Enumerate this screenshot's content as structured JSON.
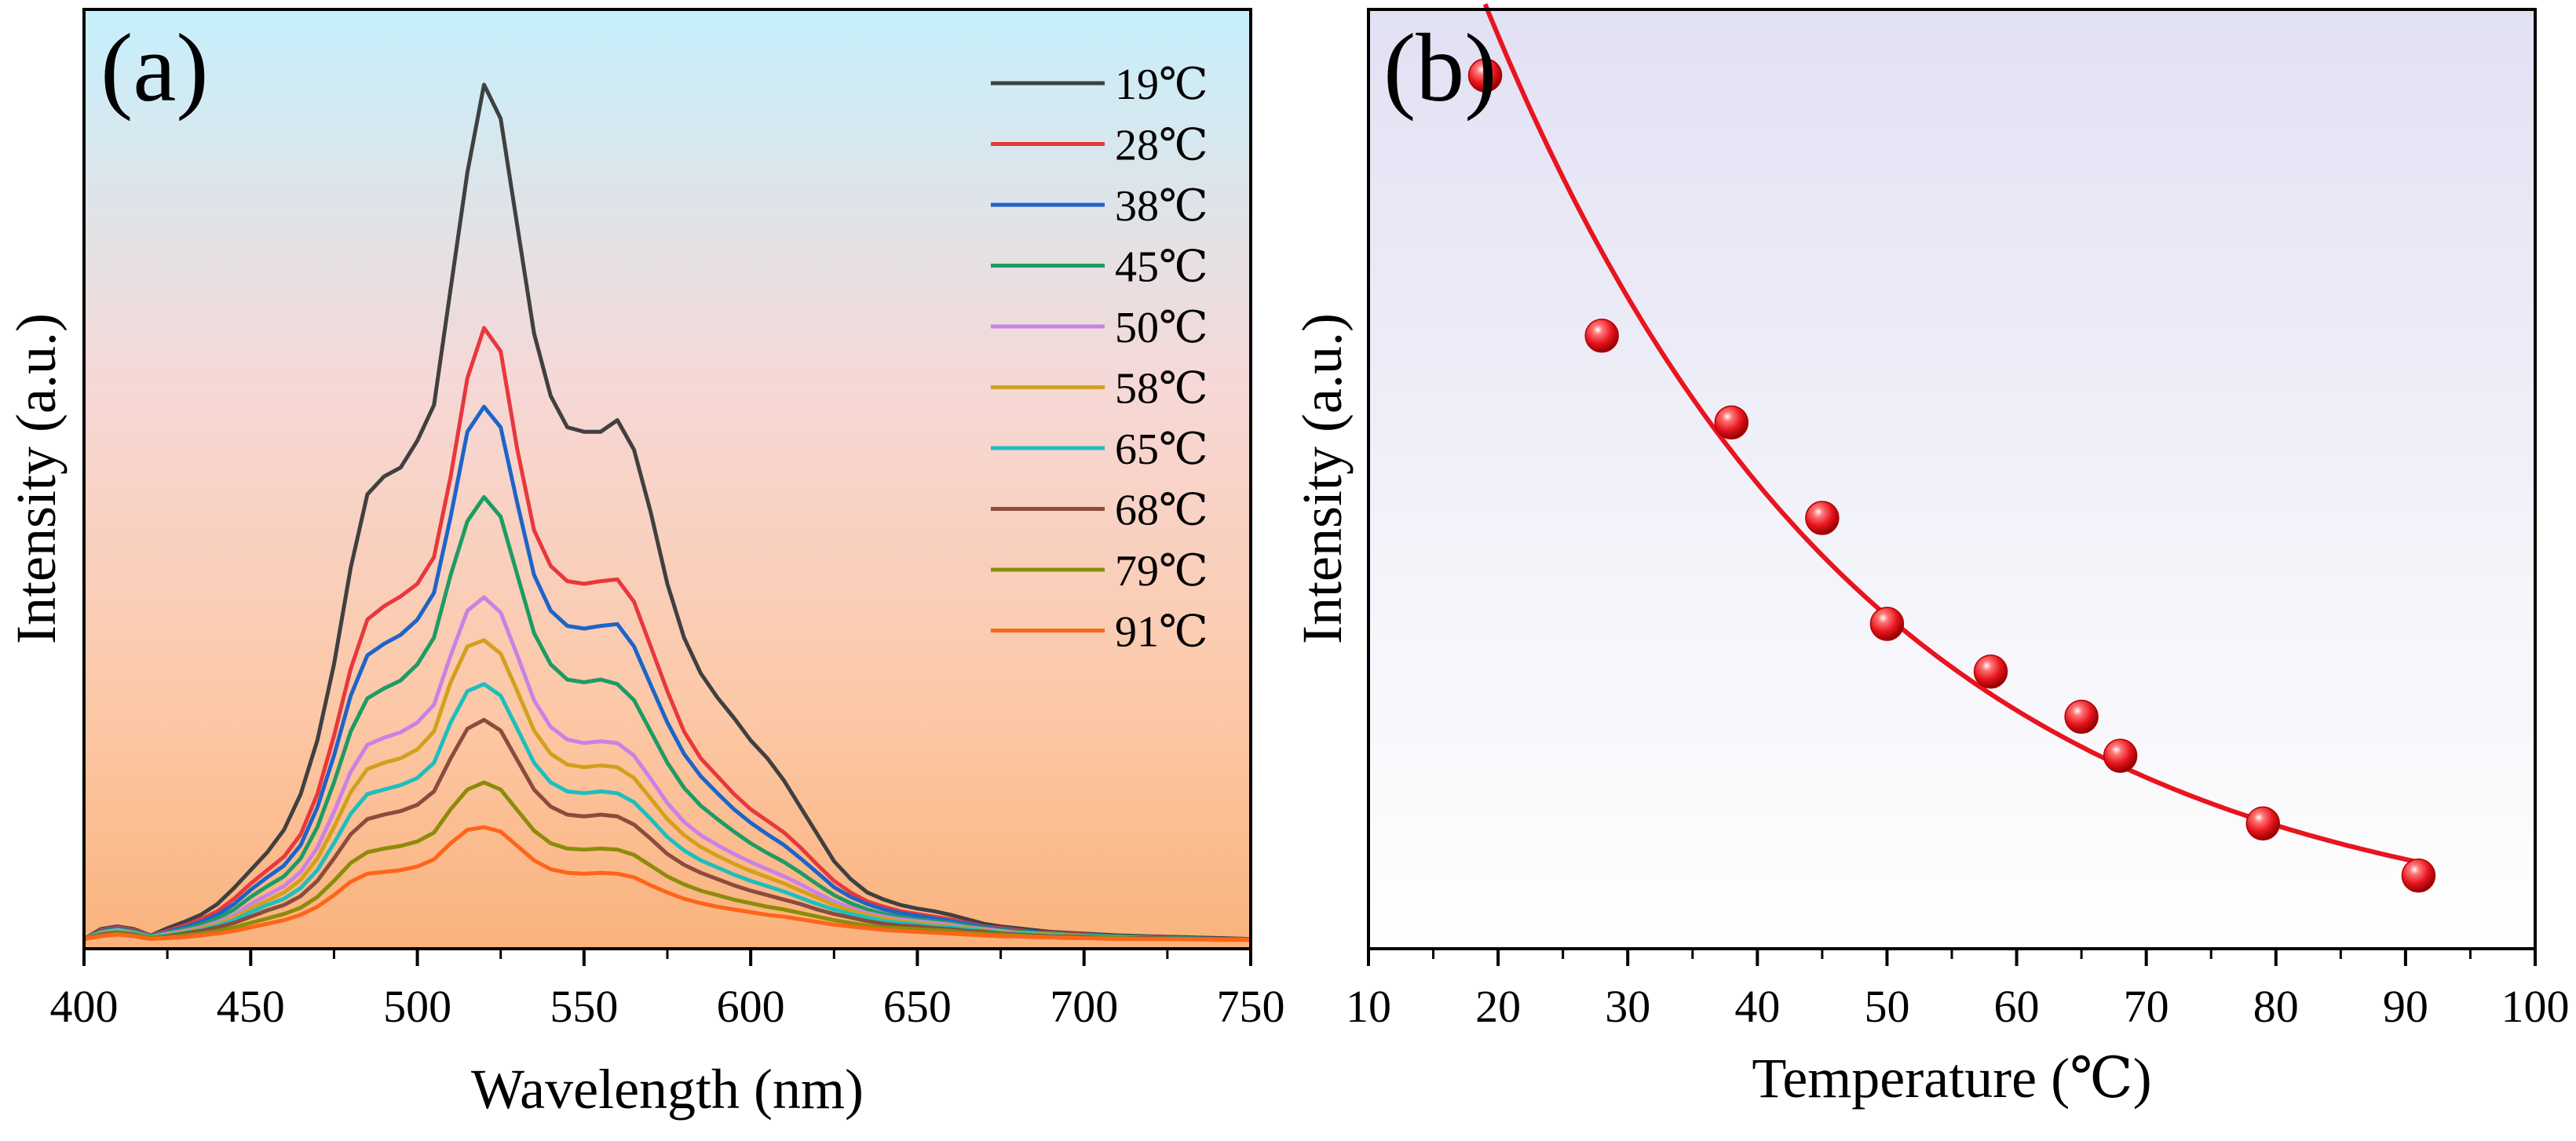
{
  "chart_data": [
    {
      "panel_label": "(a)",
      "type": "line",
      "xlabel": "Wavelength (nm)",
      "ylabel": "Intensity (a.u.)",
      "xlim": [
        400,
        750
      ],
      "ylim": [
        0,
        1.0
      ],
      "x_ticks": [
        "400",
        "450",
        "500",
        "550",
        "600",
        "650",
        "700",
        "750"
      ],
      "legend_position": "top-right",
      "background": "vertical gradient, light cyan at top to light orange at bottom",
      "x": [
        400,
        405,
        410,
        415,
        420,
        425,
        430,
        435,
        440,
        445,
        450,
        455,
        460,
        465,
        470,
        475,
        480,
        485,
        490,
        495,
        500,
        505,
        510,
        515,
        520,
        525,
        530,
        535,
        540,
        545,
        550,
        555,
        560,
        565,
        570,
        575,
        580,
        585,
        590,
        595,
        600,
        605,
        610,
        615,
        620,
        625,
        630,
        635,
        640,
        645,
        650,
        655,
        660,
        665,
        670,
        675,
        680,
        685,
        690,
        695,
        700,
        710,
        720,
        730,
        740,
        750
      ],
      "series": [
        {
          "name": "19℃",
          "color": "#404040",
          "values": [
            0.003,
            0.014,
            0.017,
            0.014,
            0.007,
            0.015,
            0.022,
            0.03,
            0.042,
            0.06,
            0.08,
            0.1,
            0.125,
            0.165,
            0.225,
            0.31,
            0.418,
            0.5,
            0.52,
            0.53,
            0.56,
            0.6,
            0.73,
            0.86,
            0.958,
            0.92,
            0.8,
            0.68,
            0.61,
            0.575,
            0.57,
            0.57,
            0.583,
            0.55,
            0.48,
            0.4,
            0.34,
            0.3,
            0.273,
            0.25,
            0.225,
            0.205,
            0.18,
            0.15,
            0.12,
            0.09,
            0.07,
            0.055,
            0.047,
            0.041,
            0.037,
            0.034,
            0.03,
            0.025,
            0.02,
            0.017,
            0.015,
            0.013,
            0.011,
            0.01,
            0.009,
            0.007,
            0.006,
            0.005,
            0.004,
            0.003
          ]
        },
        {
          "name": "28℃",
          "color": "#E8383D",
          "values": [
            0.003,
            0.013,
            0.016,
            0.013,
            0.007,
            0.012,
            0.018,
            0.025,
            0.034,
            0.048,
            0.065,
            0.08,
            0.095,
            0.12,
            0.165,
            0.23,
            0.305,
            0.36,
            0.375,
            0.386,
            0.4,
            0.43,
            0.52,
            0.63,
            0.686,
            0.66,
            0.55,
            0.46,
            0.42,
            0.403,
            0.4,
            0.403,
            0.405,
            0.38,
            0.33,
            0.28,
            0.235,
            0.205,
            0.185,
            0.165,
            0.148,
            0.135,
            0.122,
            0.105,
            0.086,
            0.068,
            0.055,
            0.045,
            0.039,
            0.034,
            0.031,
            0.028,
            0.025,
            0.021,
            0.017,
            0.015,
            0.013,
            0.011,
            0.01,
            0.009,
            0.008,
            0.006,
            0.005,
            0.004,
            0.003,
            0.003
          ]
        },
        {
          "name": "38℃",
          "color": "#1E64C8",
          "values": [
            0.003,
            0.012,
            0.015,
            0.012,
            0.006,
            0.011,
            0.016,
            0.022,
            0.03,
            0.042,
            0.058,
            0.072,
            0.085,
            0.108,
            0.15,
            0.208,
            0.275,
            0.32,
            0.333,
            0.343,
            0.36,
            0.39,
            0.475,
            0.57,
            0.598,
            0.575,
            0.49,
            0.41,
            0.37,
            0.353,
            0.35,
            0.353,
            0.355,
            0.33,
            0.287,
            0.245,
            0.21,
            0.185,
            0.166,
            0.148,
            0.133,
            0.12,
            0.108,
            0.093,
            0.077,
            0.061,
            0.05,
            0.042,
            0.036,
            0.032,
            0.029,
            0.026,
            0.023,
            0.02,
            0.016,
            0.014,
            0.012,
            0.011,
            0.009,
            0.008,
            0.007,
            0.006,
            0.005,
            0.004,
            0.003,
            0.003
          ]
        },
        {
          "name": "45℃",
          "color": "#1E9B64",
          "values": [
            0.003,
            0.011,
            0.014,
            0.011,
            0.006,
            0.01,
            0.014,
            0.019,
            0.026,
            0.036,
            0.05,
            0.062,
            0.073,
            0.093,
            0.128,
            0.178,
            0.235,
            0.272,
            0.283,
            0.292,
            0.31,
            0.34,
            0.41,
            0.47,
            0.497,
            0.475,
            0.41,
            0.345,
            0.31,
            0.293,
            0.29,
            0.293,
            0.288,
            0.27,
            0.235,
            0.2,
            0.172,
            0.152,
            0.137,
            0.123,
            0.11,
            0.099,
            0.089,
            0.077,
            0.064,
            0.052,
            0.043,
            0.036,
            0.031,
            0.028,
            0.025,
            0.023,
            0.021,
            0.018,
            0.015,
            0.013,
            0.011,
            0.01,
            0.009,
            0.008,
            0.007,
            0.006,
            0.005,
            0.004,
            0.003,
            0.003
          ]
        },
        {
          "name": "50℃",
          "color": "#C882E6",
          "values": [
            0.003,
            0.01,
            0.013,
            0.01,
            0.005,
            0.009,
            0.012,
            0.016,
            0.022,
            0.03,
            0.042,
            0.052,
            0.062,
            0.078,
            0.105,
            0.145,
            0.19,
            0.22,
            0.228,
            0.234,
            0.245,
            0.265,
            0.32,
            0.37,
            0.385,
            0.368,
            0.32,
            0.27,
            0.24,
            0.226,
            0.222,
            0.224,
            0.222,
            0.208,
            0.182,
            0.155,
            0.134,
            0.119,
            0.108,
            0.098,
            0.089,
            0.081,
            0.073,
            0.064,
            0.054,
            0.045,
            0.038,
            0.032,
            0.028,
            0.025,
            0.023,
            0.021,
            0.019,
            0.016,
            0.014,
            0.012,
            0.01,
            0.009,
            0.008,
            0.007,
            0.006,
            0.005,
            0.004,
            0.003,
            0.003,
            0.003
          ]
        },
        {
          "name": "58℃",
          "color": "#D2A01E",
          "values": [
            0.003,
            0.01,
            0.012,
            0.01,
            0.005,
            0.008,
            0.011,
            0.015,
            0.02,
            0.027,
            0.037,
            0.046,
            0.055,
            0.069,
            0.093,
            0.128,
            0.167,
            0.193,
            0.2,
            0.205,
            0.215,
            0.235,
            0.29,
            0.33,
            0.337,
            0.322,
            0.28,
            0.236,
            0.21,
            0.198,
            0.195,
            0.197,
            0.195,
            0.183,
            0.16,
            0.137,
            0.119,
            0.106,
            0.096,
            0.087,
            0.079,
            0.072,
            0.065,
            0.057,
            0.049,
            0.041,
            0.035,
            0.03,
            0.026,
            0.023,
            0.021,
            0.019,
            0.017,
            0.015,
            0.013,
            0.011,
            0.01,
            0.009,
            0.008,
            0.007,
            0.006,
            0.005,
            0.004,
            0.003,
            0.003,
            0.003
          ]
        },
        {
          "name": "65℃",
          "color": "#1EBEBE",
          "values": [
            0.003,
            0.009,
            0.011,
            0.009,
            0.005,
            0.007,
            0.01,
            0.013,
            0.018,
            0.024,
            0.033,
            0.041,
            0.048,
            0.06,
            0.08,
            0.11,
            0.143,
            0.165,
            0.17,
            0.175,
            0.183,
            0.2,
            0.245,
            0.28,
            0.288,
            0.275,
            0.238,
            0.2,
            0.178,
            0.168,
            0.166,
            0.168,
            0.166,
            0.156,
            0.137,
            0.117,
            0.102,
            0.091,
            0.083,
            0.075,
            0.068,
            0.062,
            0.056,
            0.049,
            0.042,
            0.036,
            0.031,
            0.027,
            0.023,
            0.021,
            0.019,
            0.017,
            0.016,
            0.014,
            0.012,
            0.01,
            0.009,
            0.008,
            0.007,
            0.006,
            0.006,
            0.005,
            0.004,
            0.003,
            0.003,
            0.003
          ]
        },
        {
          "name": "68℃",
          "color": "#8C4B3C",
          "values": [
            0.003,
            0.008,
            0.01,
            0.008,
            0.004,
            0.006,
            0.009,
            0.012,
            0.016,
            0.021,
            0.028,
            0.035,
            0.041,
            0.051,
            0.068,
            0.093,
            0.12,
            0.137,
            0.142,
            0.146,
            0.153,
            0.168,
            0.205,
            0.238,
            0.248,
            0.236,
            0.203,
            0.17,
            0.151,
            0.142,
            0.14,
            0.142,
            0.14,
            0.131,
            0.115,
            0.098,
            0.086,
            0.077,
            0.07,
            0.063,
            0.057,
            0.052,
            0.047,
            0.042,
            0.036,
            0.031,
            0.027,
            0.023,
            0.02,
            0.018,
            0.017,
            0.015,
            0.014,
            0.012,
            0.011,
            0.009,
            0.008,
            0.007,
            0.006,
            0.006,
            0.005,
            0.004,
            0.004,
            0.003,
            0.003,
            0.003
          ]
        },
        {
          "name": "79℃",
          "color": "#8C8C0A",
          "values": [
            0.003,
            0.007,
            0.009,
            0.007,
            0.004,
            0.005,
            0.007,
            0.009,
            0.012,
            0.016,
            0.021,
            0.026,
            0.031,
            0.038,
            0.05,
            0.068,
            0.088,
            0.1,
            0.104,
            0.107,
            0.112,
            0.122,
            0.148,
            0.17,
            0.178,
            0.17,
            0.147,
            0.124,
            0.11,
            0.104,
            0.103,
            0.104,
            0.103,
            0.097,
            0.085,
            0.073,
            0.064,
            0.057,
            0.052,
            0.047,
            0.043,
            0.039,
            0.036,
            0.032,
            0.028,
            0.024,
            0.021,
            0.018,
            0.016,
            0.015,
            0.014,
            0.013,
            0.012,
            0.01,
            0.009,
            0.008,
            0.007,
            0.006,
            0.005,
            0.005,
            0.004,
            0.004,
            0.003,
            0.003,
            0.003,
            0.002
          ]
        },
        {
          "name": "91℃",
          "color": "#FF6419",
          "values": [
            0.003,
            0.006,
            0.008,
            0.006,
            0.003,
            0.004,
            0.005,
            0.007,
            0.009,
            0.012,
            0.016,
            0.02,
            0.024,
            0.03,
            0.039,
            0.052,
            0.067,
            0.076,
            0.078,
            0.08,
            0.084,
            0.092,
            0.11,
            0.125,
            0.128,
            0.123,
            0.107,
            0.091,
            0.081,
            0.077,
            0.076,
            0.077,
            0.076,
            0.072,
            0.063,
            0.055,
            0.048,
            0.043,
            0.039,
            0.036,
            0.033,
            0.03,
            0.028,
            0.025,
            0.022,
            0.019,
            0.017,
            0.015,
            0.013,
            0.012,
            0.011,
            0.01,
            0.009,
            0.008,
            0.007,
            0.006,
            0.006,
            0.005,
            0.005,
            0.004,
            0.004,
            0.003,
            0.003,
            0.003,
            0.002,
            0.002
          ]
        }
      ]
    },
    {
      "panel_label": "(b)",
      "type": "scatter",
      "xlabel": "Temperature (℃)",
      "ylabel": "Intensity (a.u.)",
      "xlim": [
        10,
        100
      ],
      "ylim": [
        0,
        1.0
      ],
      "x_ticks": [
        "10",
        "20",
        "30",
        "40",
        "50",
        "60",
        "70",
        "80",
        "90",
        "100"
      ],
      "background": "vertical gradient, lavender at top to white at bottom",
      "marker_color": "#E8141E",
      "fit_color": "#E8141E",
      "fit_model": "exponential decay",
      "fit_x_range": [
        19,
        91
      ],
      "points": {
        "x": [
          19,
          28,
          38,
          45,
          50,
          58,
          65,
          68,
          79,
          91
        ],
        "y": [
          1.0,
          0.7,
          0.6,
          0.49,
          0.368,
          0.313,
          0.261,
          0.216,
          0.138,
          0.078
        ]
      }
    }
  ]
}
